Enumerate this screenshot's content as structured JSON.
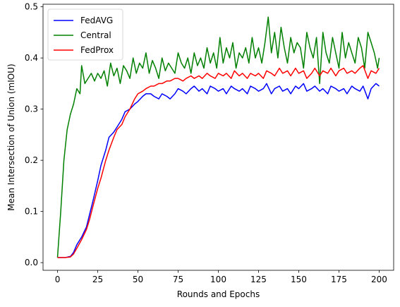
{
  "chart_data": {
    "type": "line",
    "title": "",
    "xlabel": "Rounds and Epochs",
    "ylabel": "Mean Intersection of Union (mIOU)",
    "xlim": [
      -9,
      209
    ],
    "ylim": [
      -0.015,
      0.505
    ],
    "xticks": [
      0,
      25,
      50,
      75,
      100,
      125,
      150,
      175,
      200
    ],
    "yticks": [
      0.0,
      0.1,
      0.2,
      0.3,
      0.4,
      0.5
    ],
    "ytick_labels": [
      "0.0",
      "0.1",
      "0.2",
      "0.3",
      "0.4",
      "0.5"
    ],
    "grid": false,
    "legend_position": "top-left",
    "series": [
      {
        "name": "FedAVG",
        "color": "#0000ff",
        "x": [
          0,
          5,
          8,
          10,
          12,
          15,
          18,
          20,
          22,
          25,
          27,
          30,
          32,
          35,
          37,
          40,
          42,
          45,
          48,
          50,
          53,
          55,
          58,
          60,
          63,
          65,
          68,
          70,
          73,
          75,
          78,
          80,
          83,
          85,
          88,
          90,
          93,
          95,
          98,
          100,
          103,
          105,
          108,
          110,
          113,
          115,
          118,
          120,
          123,
          125,
          128,
          130,
          133,
          135,
          138,
          140,
          143,
          145,
          148,
          150,
          153,
          155,
          158,
          160,
          163,
          165,
          168,
          170,
          173,
          175,
          178,
          180,
          183,
          185,
          188,
          190,
          193,
          195,
          198,
          200
        ],
        "y": [
          0.01,
          0.01,
          0.012,
          0.02,
          0.035,
          0.05,
          0.07,
          0.095,
          0.12,
          0.16,
          0.19,
          0.22,
          0.245,
          0.255,
          0.265,
          0.28,
          0.295,
          0.3,
          0.31,
          0.315,
          0.325,
          0.33,
          0.33,
          0.325,
          0.32,
          0.33,
          0.325,
          0.32,
          0.33,
          0.34,
          0.335,
          0.33,
          0.34,
          0.345,
          0.335,
          0.34,
          0.33,
          0.345,
          0.34,
          0.335,
          0.34,
          0.33,
          0.345,
          0.34,
          0.335,
          0.34,
          0.33,
          0.345,
          0.34,
          0.335,
          0.34,
          0.35,
          0.33,
          0.34,
          0.345,
          0.335,
          0.34,
          0.33,
          0.345,
          0.34,
          0.35,
          0.335,
          0.34,
          0.345,
          0.335,
          0.34,
          0.33,
          0.345,
          0.34,
          0.335,
          0.34,
          0.33,
          0.345,
          0.34,
          0.335,
          0.345,
          0.32,
          0.34,
          0.35,
          0.345
        ]
      },
      {
        "name": "Central",
        "color": "#008000",
        "x": [
          0,
          2,
          4,
          6,
          8,
          10,
          12,
          14,
          15,
          17,
          19,
          21,
          23,
          25,
          27,
          29,
          31,
          33,
          35,
          37,
          39,
          41,
          43,
          45,
          47,
          49,
          51,
          53,
          55,
          57,
          59,
          61,
          63,
          65,
          67,
          69,
          71,
          73,
          75,
          77,
          79,
          81,
          83,
          85,
          87,
          89,
          91,
          93,
          95,
          97,
          99,
          101,
          103,
          105,
          107,
          109,
          111,
          113,
          115,
          117,
          119,
          121,
          123,
          125,
          127,
          129,
          131,
          133,
          135,
          137,
          139,
          141,
          143,
          145,
          147,
          149,
          151,
          153,
          155,
          157,
          159,
          161,
          163,
          165,
          167,
          169,
          171,
          173,
          175,
          177,
          179,
          181,
          183,
          185,
          187,
          189,
          191,
          193,
          195,
          197,
          199,
          200
        ],
        "y": [
          0.01,
          0.1,
          0.2,
          0.26,
          0.29,
          0.31,
          0.34,
          0.33,
          0.385,
          0.35,
          0.36,
          0.37,
          0.355,
          0.37,
          0.36,
          0.375,
          0.345,
          0.39,
          0.365,
          0.38,
          0.35,
          0.385,
          0.375,
          0.36,
          0.4,
          0.37,
          0.39,
          0.38,
          0.41,
          0.37,
          0.395,
          0.38,
          0.36,
          0.4,
          0.375,
          0.39,
          0.38,
          0.37,
          0.41,
          0.39,
          0.38,
          0.4,
          0.37,
          0.41,
          0.385,
          0.4,
          0.38,
          0.42,
          0.39,
          0.41,
          0.38,
          0.44,
          0.39,
          0.42,
          0.4,
          0.43,
          0.38,
          0.41,
          0.4,
          0.42,
          0.39,
          0.44,
          0.4,
          0.42,
          0.39,
          0.43,
          0.48,
          0.41,
          0.45,
          0.4,
          0.46,
          0.42,
          0.39,
          0.44,
          0.41,
          0.43,
          0.42,
          0.38,
          0.45,
          0.42,
          0.4,
          0.44,
          0.35,
          0.45,
          0.41,
          0.39,
          0.44,
          0.41,
          0.38,
          0.45,
          0.4,
          0.43,
          0.41,
          0.39,
          0.44,
          0.42,
          0.38,
          0.45,
          0.43,
          0.41,
          0.38,
          0.4
        ]
      },
      {
        "name": "FedProx",
        "color": "#ff0000",
        "x": [
          0,
          5,
          8,
          10,
          12,
          15,
          18,
          20,
          22,
          25,
          27,
          30,
          32,
          35,
          37,
          40,
          42,
          45,
          48,
          50,
          53,
          55,
          58,
          60,
          63,
          65,
          68,
          70,
          73,
          75,
          78,
          80,
          83,
          85,
          88,
          90,
          93,
          95,
          98,
          100,
          103,
          105,
          108,
          110,
          113,
          115,
          118,
          120,
          123,
          125,
          128,
          130,
          133,
          135,
          138,
          140,
          143,
          145,
          148,
          150,
          153,
          155,
          158,
          160,
          163,
          165,
          168,
          170,
          173,
          175,
          178,
          180,
          183,
          185,
          188,
          190,
          193,
          195,
          198,
          200
        ],
        "y": [
          0.01,
          0.01,
          0.011,
          0.017,
          0.028,
          0.045,
          0.065,
          0.085,
          0.11,
          0.145,
          0.165,
          0.2,
          0.22,
          0.245,
          0.26,
          0.27,
          0.285,
          0.3,
          0.32,
          0.33,
          0.335,
          0.34,
          0.345,
          0.345,
          0.35,
          0.35,
          0.355,
          0.355,
          0.36,
          0.36,
          0.355,
          0.36,
          0.365,
          0.36,
          0.365,
          0.36,
          0.37,
          0.365,
          0.36,
          0.37,
          0.365,
          0.37,
          0.36,
          0.375,
          0.365,
          0.37,
          0.36,
          0.37,
          0.365,
          0.37,
          0.36,
          0.375,
          0.37,
          0.365,
          0.38,
          0.37,
          0.375,
          0.365,
          0.38,
          0.37,
          0.375,
          0.36,
          0.37,
          0.38,
          0.365,
          0.375,
          0.37,
          0.38,
          0.365,
          0.375,
          0.38,
          0.37,
          0.375,
          0.37,
          0.38,
          0.385,
          0.36,
          0.375,
          0.37,
          0.38
        ]
      }
    ]
  }
}
